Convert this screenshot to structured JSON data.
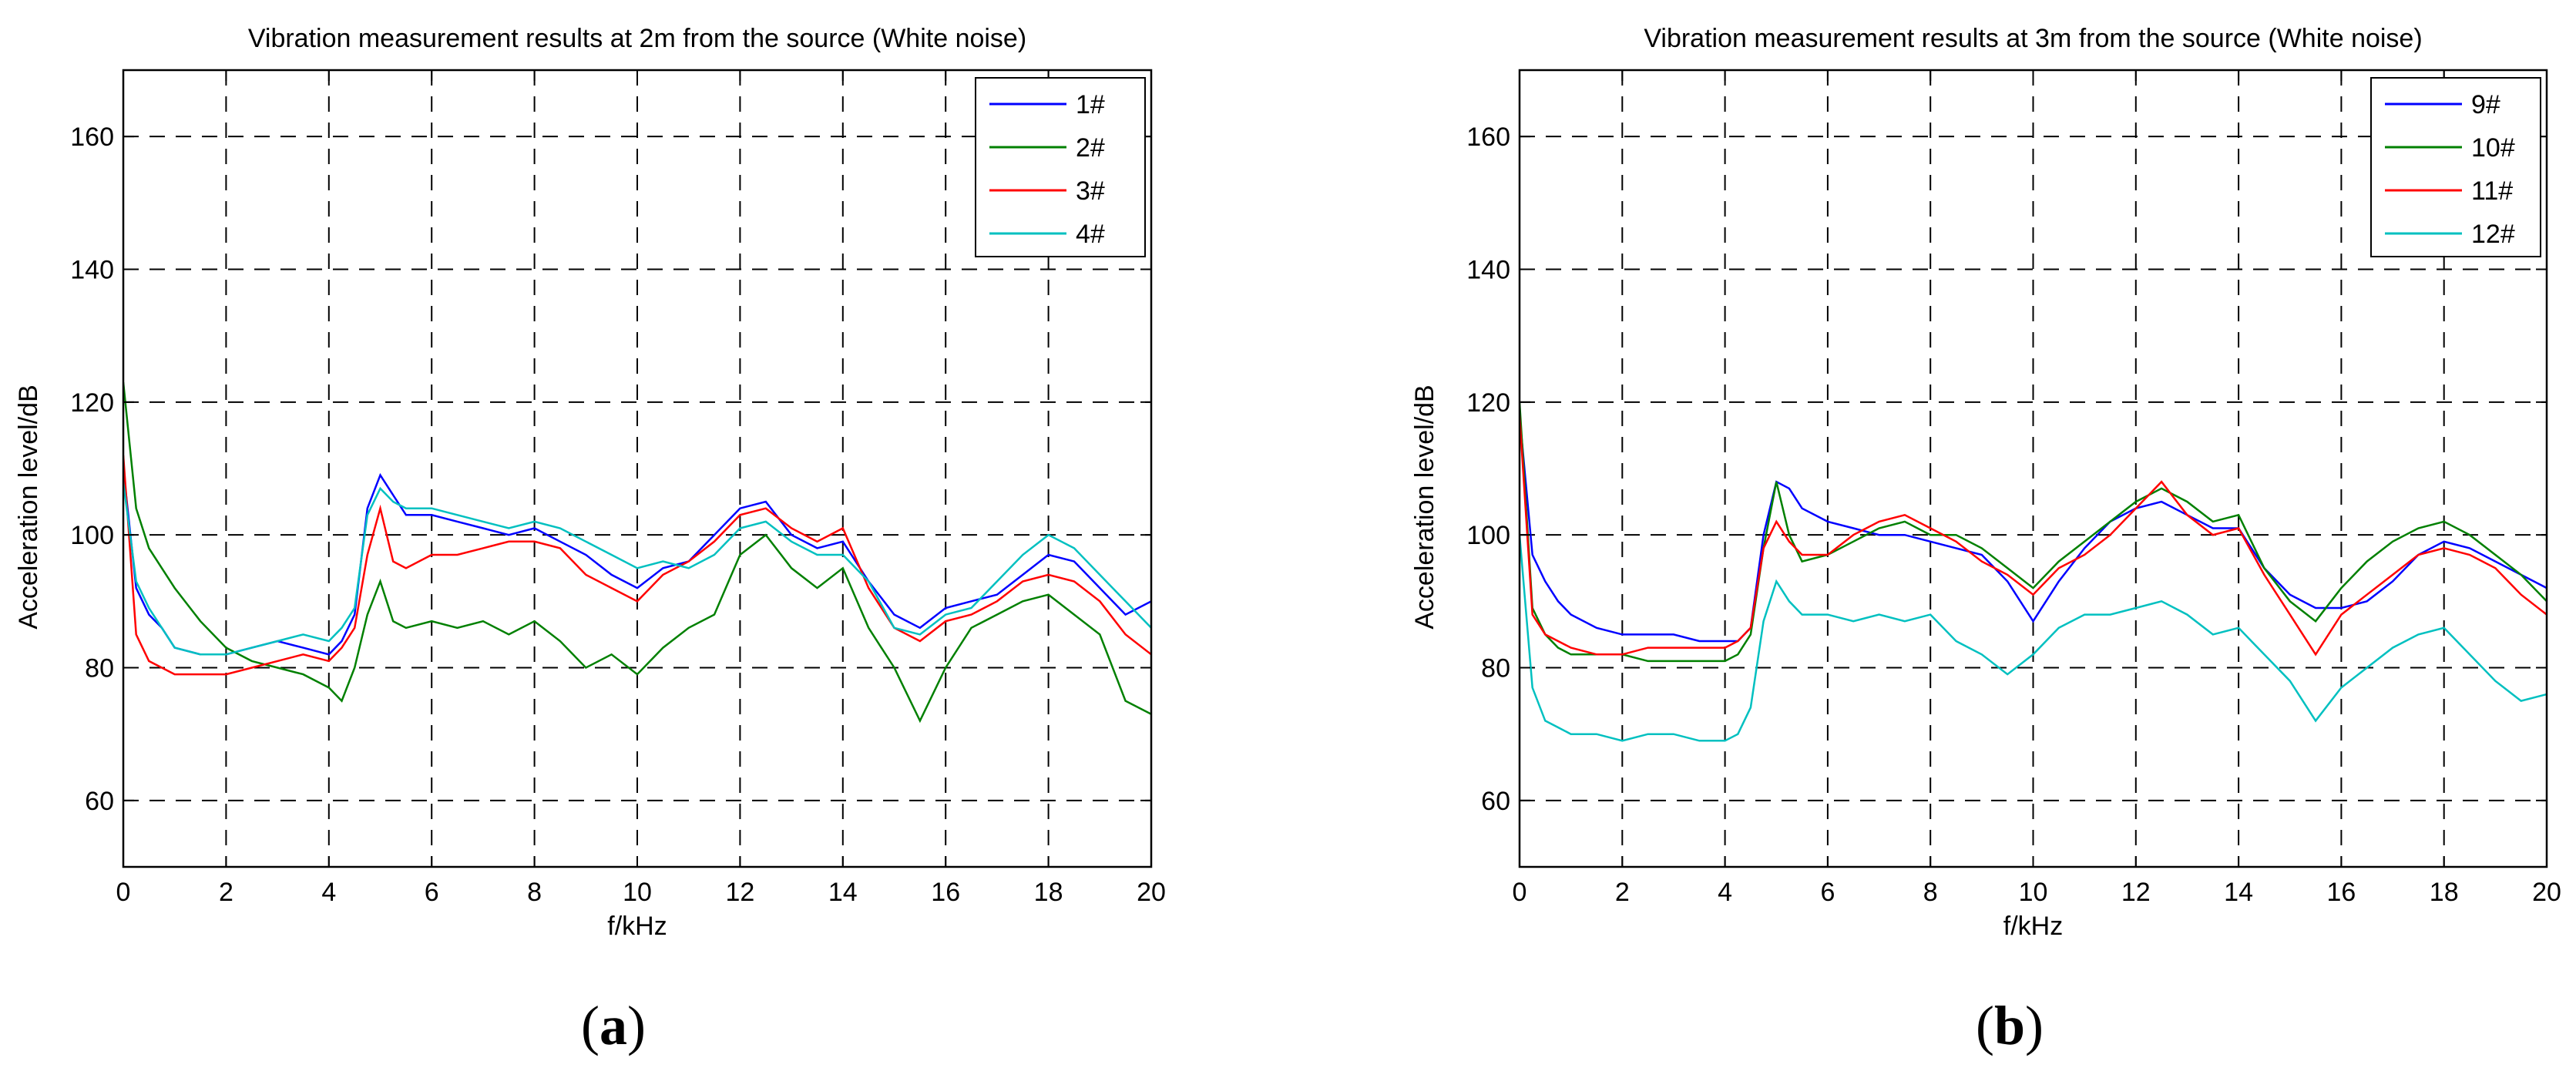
{
  "chart_data": [
    {
      "type": "line",
      "title": "Vibration measurement results at 2m from the source (White noise)",
      "xlabel": "f/kHz",
      "ylabel": "Acceleration level/dB",
      "xlim": [
        0,
        20
      ],
      "ylim": [
        50,
        170
      ],
      "xticks": [
        0,
        2,
        4,
        6,
        8,
        10,
        12,
        14,
        16,
        18,
        20
      ],
      "yticks": [
        60,
        80,
        100,
        120,
        140,
        160
      ],
      "grid": true,
      "legend_position": "top-right",
      "caption": "a",
      "x": [
        0,
        0.25,
        0.5,
        0.75,
        1,
        1.5,
        2,
        2.5,
        3,
        3.5,
        4,
        4.25,
        4.5,
        4.75,
        5,
        5.25,
        5.5,
        6,
        6.5,
        7,
        7.5,
        8,
        8.5,
        9,
        9.5,
        10,
        10.5,
        11,
        11.5,
        12,
        12.5,
        13,
        13.5,
        14,
        14.5,
        15,
        15.5,
        16,
        16.5,
        17,
        17.5,
        18,
        18.5,
        19,
        19.5,
        20
      ],
      "series": [
        {
          "name": "1#",
          "color": "#0000ff",
          "values": [
            110,
            92,
            88,
            86,
            83,
            82,
            82,
            83,
            84,
            83,
            82,
            84,
            88,
            104,
            109,
            106,
            103,
            103,
            102,
            101,
            100,
            101,
            99,
            97,
            94,
            92,
            95,
            96,
            100,
            104,
            105,
            100,
            98,
            99,
            93,
            88,
            86,
            89,
            90,
            91,
            94,
            97,
            96,
            92,
            88,
            90
          ]
        },
        {
          "name": "2#",
          "color": "#008000",
          "values": [
            123,
            104,
            98,
            95,
            92,
            87,
            83,
            81,
            80,
            79,
            77,
            75,
            80,
            88,
            93,
            87,
            86,
            87,
            86,
            87,
            85,
            87,
            84,
            80,
            82,
            79,
            83,
            86,
            88,
            97,
            100,
            95,
            92,
            95,
            86,
            80,
            72,
            80,
            86,
            88,
            90,
            91,
            88,
            85,
            75,
            73
          ]
        },
        {
          "name": "3#",
          "color": "#ff0000",
          "values": [
            112,
            85,
            81,
            80,
            79,
            79,
            79,
            80,
            81,
            82,
            81,
            83,
            86,
            97,
            104,
            96,
            95,
            97,
            97,
            98,
            99,
            99,
            98,
            94,
            92,
            90,
            94,
            96,
            99,
            103,
            104,
            101,
            99,
            101,
            92,
            86,
            84,
            87,
            88,
            90,
            93,
            94,
            93,
            90,
            85,
            82
          ]
        },
        {
          "name": "4#",
          "color": "#00c0c0",
          "values": [
            108,
            93,
            89,
            86,
            83,
            82,
            82,
            83,
            84,
            85,
            84,
            86,
            89,
            103,
            107,
            105,
            104,
            104,
            103,
            102,
            101,
            102,
            101,
            99,
            97,
            95,
            96,
            95,
            97,
            101,
            102,
            99,
            97,
            97,
            93,
            86,
            85,
            88,
            89,
            93,
            97,
            100,
            98,
            94,
            90,
            86
          ]
        }
      ]
    },
    {
      "type": "line",
      "title": "Vibration measurement results at 3m from the source (White noise)",
      "xlabel": "f/kHz",
      "ylabel": "Acceleration level/dB",
      "xlim": [
        0,
        20
      ],
      "ylim": [
        50,
        170
      ],
      "xticks": [
        0,
        2,
        4,
        6,
        8,
        10,
        12,
        14,
        16,
        18,
        20
      ],
      "yticks": [
        60,
        80,
        100,
        120,
        140,
        160
      ],
      "grid": true,
      "legend_position": "top-right",
      "caption": "b",
      "x": [
        0,
        0.25,
        0.5,
        0.75,
        1,
        1.5,
        2,
        2.5,
        3,
        3.5,
        4,
        4.25,
        4.5,
        4.75,
        5,
        5.25,
        5.5,
        6,
        6.5,
        7,
        7.5,
        8,
        8.5,
        9,
        9.5,
        10,
        10.5,
        11,
        11.5,
        12,
        12.5,
        13,
        13.5,
        14,
        14.5,
        15,
        15.5,
        16,
        16.5,
        17,
        17.5,
        18,
        18.5,
        19,
        19.5,
        20
      ],
      "series": [
        {
          "name": "9#",
          "color": "#0000ff",
          "values": [
            118,
            97,
            93,
            90,
            88,
            86,
            85,
            85,
            85,
            84,
            84,
            84,
            86,
            100,
            108,
            107,
            104,
            102,
            101,
            100,
            100,
            99,
            98,
            97,
            93,
            87,
            93,
            98,
            102,
            104,
            105,
            103,
            101,
            101,
            95,
            91,
            89,
            89,
            90,
            93,
            97,
            99,
            98,
            96,
            94,
            92
          ]
        },
        {
          "name": "10#",
          "color": "#008000",
          "values": [
            120,
            89,
            85,
            83,
            82,
            82,
            82,
            81,
            81,
            81,
            81,
            82,
            85,
            98,
            108,
            100,
            96,
            97,
            99,
            101,
            102,
            100,
            100,
            98,
            95,
            92,
            96,
            99,
            102,
            105,
            107,
            105,
            102,
            103,
            95,
            90,
            87,
            92,
            96,
            99,
            101,
            102,
            100,
            97,
            94,
            90
          ]
        },
        {
          "name": "11#",
          "color": "#ff0000",
          "values": [
            118,
            88,
            85,
            84,
            83,
            82,
            82,
            83,
            83,
            83,
            83,
            84,
            86,
            98,
            102,
            99,
            97,
            97,
            100,
            102,
            103,
            101,
            99,
            96,
            94,
            91,
            95,
            97,
            100,
            104,
            108,
            103,
            100,
            101,
            94,
            88,
            82,
            88,
            91,
            94,
            97,
            98,
            97,
            95,
            91,
            88
          ]
        },
        {
          "name": "12#",
          "color": "#00c0c0",
          "values": [
            100,
            77,
            72,
            71,
            70,
            70,
            69,
            70,
            70,
            69,
            69,
            70,
            74,
            87,
            93,
            90,
            88,
            88,
            87,
            88,
            87,
            88,
            84,
            82,
            79,
            82,
            86,
            88,
            88,
            89,
            90,
            88,
            85,
            86,
            82,
            78,
            72,
            77,
            80,
            83,
            85,
            86,
            82,
            78,
            75,
            76
          ]
        }
      ]
    }
  ]
}
